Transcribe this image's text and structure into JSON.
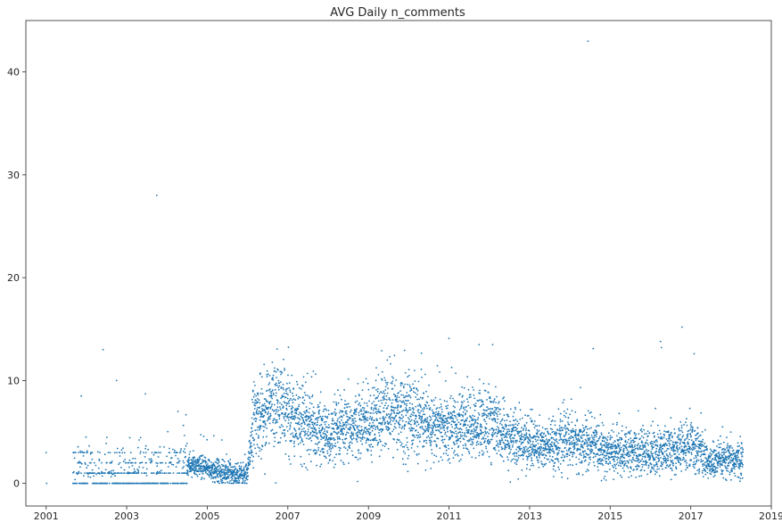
{
  "chart_data": {
    "type": "scatter",
    "title": "AVG Daily n_comments",
    "xlabel": "",
    "ylabel": "",
    "x_ticks": [
      "2001",
      "2003",
      "2005",
      "2007",
      "2009",
      "2011",
      "2013",
      "2015",
      "2017",
      "2019"
    ],
    "y_ticks": [
      "0",
      "10",
      "20",
      "30",
      "40"
    ],
    "xlim": [
      "2000-07-01",
      "2019-01-01"
    ],
    "ylim": [
      -2.2,
      45
    ],
    "grid": false,
    "marker_color": "#1f77b4",
    "outliers": [
      {
        "x": "2001-01-01",
        "y": 3
      },
      {
        "x": "2001-01-05",
        "y": 0
      },
      {
        "x": "2001-11-15",
        "y": 8.5
      },
      {
        "x": "2002-06-01",
        "y": 13
      },
      {
        "x": "2002-10-01",
        "y": 10
      },
      {
        "x": "2003-06-20",
        "y": 8.7
      },
      {
        "x": "2003-10-01",
        "y": 28
      },
      {
        "x": "2004-04-10",
        "y": 7
      },
      {
        "x": "2006-12-01",
        "y": 11
      },
      {
        "x": "2009-05-01",
        "y": 12.9
      },
      {
        "x": "2011-01-01",
        "y": 14.1
      },
      {
        "x": "2011-10-01",
        "y": 13.5
      },
      {
        "x": "2012-02-01",
        "y": 13.5
      },
      {
        "x": "2014-06-15",
        "y": 43
      },
      {
        "x": "2014-08-01",
        "y": 13.1
      },
      {
        "x": "2016-04-01",
        "y": 13.8
      },
      {
        "x": "2016-04-10",
        "y": 13.2
      },
      {
        "x": "2016-10-15",
        "y": 15.2
      },
      {
        "x": "2017-02-01",
        "y": 12.6
      }
    ],
    "trend": [
      {
        "x": "2001-09-01",
        "y": 0.3
      },
      {
        "x": "2002-06-01",
        "y": 0.6
      },
      {
        "x": "2003-06-01",
        "y": 0.7
      },
      {
        "x": "2004-06-01",
        "y": 1.3
      },
      {
        "x": "2004-07-15",
        "y": 1.8
      },
      {
        "x": "2005-06-01",
        "y": 1.1
      },
      {
        "x": "2006-01-01",
        "y": 0.8
      },
      {
        "x": "2006-02-15",
        "y": 6.0
      },
      {
        "x": "2006-09-01",
        "y": 7.8
      },
      {
        "x": "2007-06-01",
        "y": 6.0
      },
      {
        "x": "2008-01-01",
        "y": 4.5
      },
      {
        "x": "2009-01-01",
        "y": 6.0
      },
      {
        "x": "2009-06-01",
        "y": 7.0
      },
      {
        "x": "2010-01-01",
        "y": 7.0
      },
      {
        "x": "2010-07-01",
        "y": 5.5
      },
      {
        "x": "2011-06-01",
        "y": 5.5
      },
      {
        "x": "2012-01-01",
        "y": 6.0
      },
      {
        "x": "2012-06-01",
        "y": 4.5
      },
      {
        "x": "2013-06-01",
        "y": 3.5
      },
      {
        "x": "2014-01-01",
        "y": 4.2
      },
      {
        "x": "2015-01-01",
        "y": 3.0
      },
      {
        "x": "2016-01-01",
        "y": 3.0
      },
      {
        "x": "2016-10-01",
        "y": 3.3
      },
      {
        "x": "2017-03-01",
        "y": 3.8
      },
      {
        "x": "2017-06-01",
        "y": 2.0
      },
      {
        "x": "2018-04-01",
        "y": 2.3
      }
    ]
  }
}
